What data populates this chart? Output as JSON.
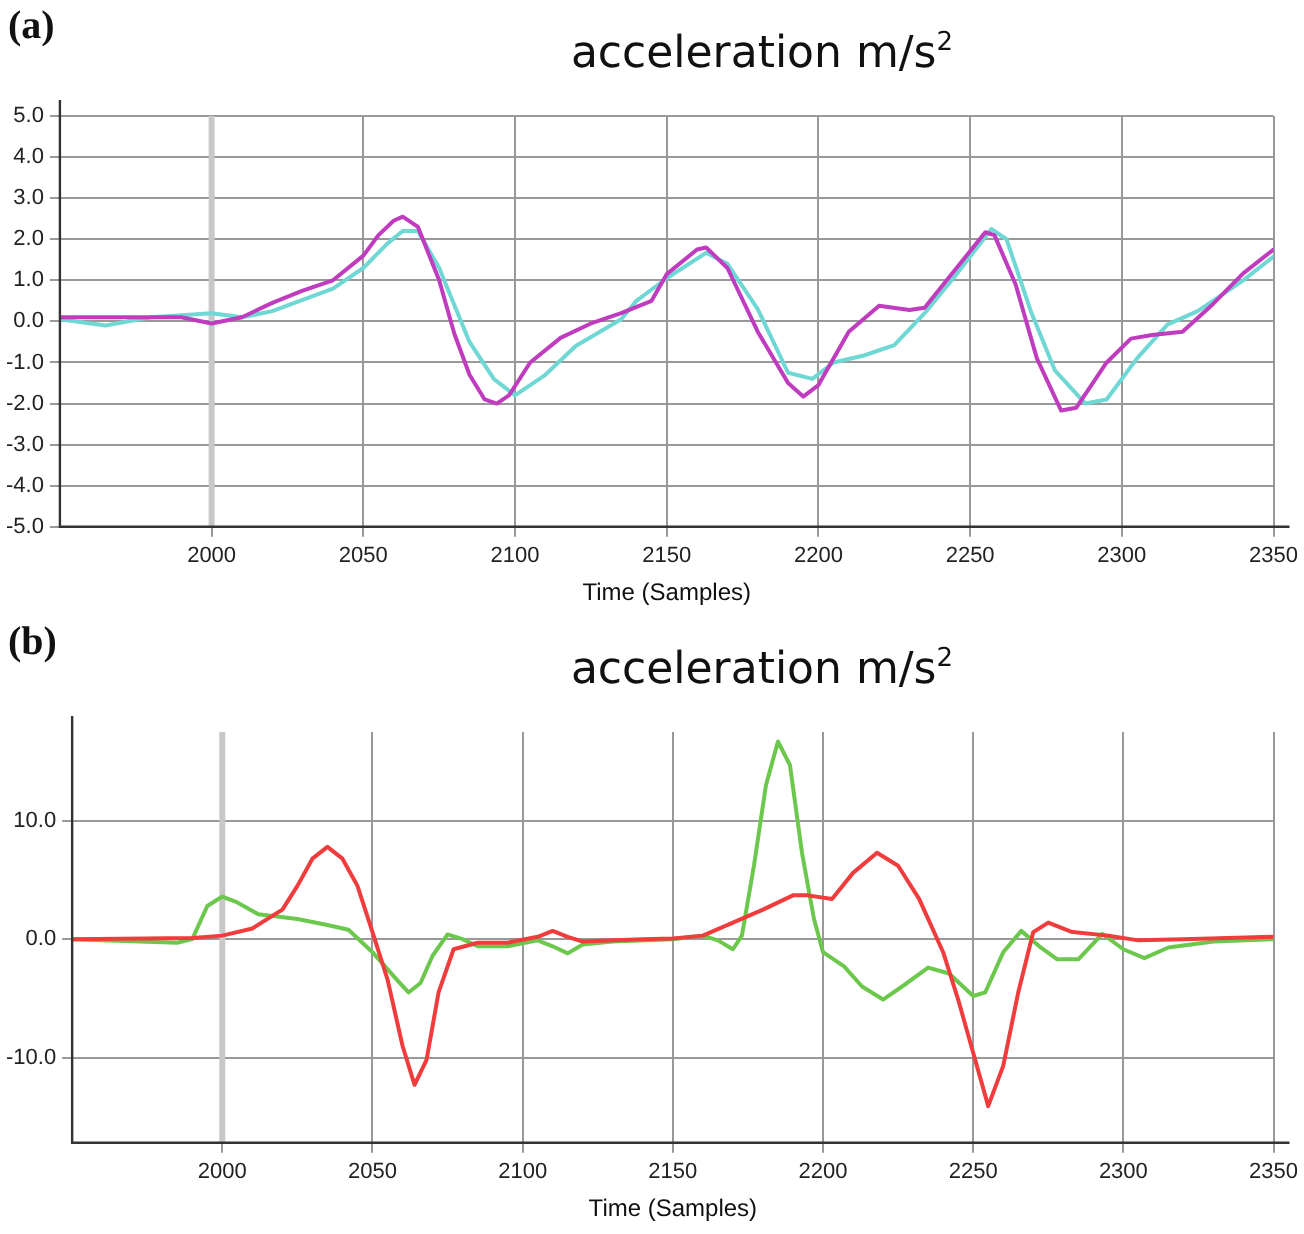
{
  "chart_data": [
    {
      "type": "line",
      "title": "acceleration m/s$^{2}$",
      "xlabel": "Time (Samples)",
      "annotations": [
        "(a)"
      ],
      "xlim": [
        1950,
        2350
      ],
      "xticks": [
        2000,
        2050,
        2100,
        2150,
        2200,
        2250,
        2300,
        2350
      ],
      "ylim": [
        -5,
        5
      ],
      "yticks": [
        {
          "value": -5,
          "label": "-5.0"
        },
        {
          "value": -4,
          "label": "-4.0"
        },
        {
          "value": -3,
          "label": "-3.0"
        },
        {
          "value": -2,
          "label": "-2.0"
        },
        {
          "value": -1,
          "label": "-1.0"
        },
        {
          "value": 0,
          "label": "0.0"
        },
        {
          "value": 1,
          "label": "1.0"
        },
        {
          "value": 2,
          "label": "2.0"
        },
        {
          "value": 3,
          "label": "3.0"
        },
        {
          "value": 4,
          "label": "4.0"
        },
        {
          "value": 5,
          "label": "5.0"
        }
      ],
      "grid": true,
      "legend": false,
      "marker": "none",
      "line_style": "solid",
      "ref_lines": [
        {
          "axis": "x",
          "value": 2000,
          "color": "#c8c8c8"
        }
      ],
      "series": [
        {
          "color": "#c03cbf",
          "x": [
            1950,
            1975,
            1990,
            2000,
            2010,
            2020,
            2030,
            2040,
            2050,
            2055,
            2060,
            2063,
            2068,
            2075,
            2080,
            2085,
            2090,
            2094,
            2098,
            2105,
            2115,
            2125,
            2135,
            2145,
            2150,
            2160,
            2163,
            2170,
            2180,
            2190,
            2195,
            2200,
            2210,
            2220,
            2230,
            2235,
            2245,
            2255,
            2258,
            2265,
            2272,
            2280,
            2285,
            2295,
            2303,
            2310,
            2320,
            2330,
            2340,
            2350
          ],
          "values": [
            0.1,
            0.1,
            0.1,
            -0.05,
            0.1,
            0.45,
            0.75,
            1.0,
            1.6,
            2.1,
            2.45,
            2.55,
            2.3,
            1.0,
            -0.3,
            -1.3,
            -1.9,
            -2.0,
            -1.8,
            -1.0,
            -0.4,
            -0.05,
            0.2,
            0.5,
            1.15,
            1.75,
            1.8,
            1.3,
            -0.25,
            -1.5,
            -1.83,
            -1.55,
            -0.25,
            0.38,
            0.28,
            0.33,
            1.25,
            2.17,
            2.1,
            0.9,
            -0.9,
            -2.17,
            -2.1,
            -1.0,
            -0.42,
            -0.33,
            -0.25,
            0.42,
            1.17,
            1.75
          ]
        },
        {
          "color": "#6fd8d4",
          "x": [
            1950,
            1965,
            1980,
            2000,
            2010,
            2020,
            2040,
            2050,
            2058,
            2063,
            2068,
            2075,
            2085,
            2093,
            2100,
            2110,
            2120,
            2135,
            2140,
            2150,
            2163,
            2170,
            2180,
            2190,
            2198,
            2205,
            2215,
            2225,
            2235,
            2245,
            2257,
            2262,
            2270,
            2278,
            2288,
            2295,
            2305,
            2315,
            2325,
            2340,
            2350
          ],
          "values": [
            0.05,
            -0.1,
            0.1,
            0.2,
            0.1,
            0.25,
            0.8,
            1.3,
            1.9,
            2.2,
            2.2,
            1.3,
            -0.5,
            -1.4,
            -1.8,
            -1.3,
            -0.6,
            0.05,
            0.5,
            1.05,
            1.67,
            1.4,
            0.3,
            -1.25,
            -1.4,
            -1.0,
            -0.83,
            -0.58,
            0.2,
            1.1,
            2.25,
            2.0,
            0.25,
            -1.2,
            -2.0,
            -1.9,
            -0.9,
            -0.08,
            0.25,
            1.0,
            1.58
          ]
        }
      ]
    },
    {
      "type": "line",
      "title": "acceleration m/s$^{2}$",
      "xlabel": "Time (Samples)",
      "annotations": [
        "(b)"
      ],
      "xlim": [
        1950,
        2350
      ],
      "xticks": [
        2000,
        2050,
        2100,
        2150,
        2200,
        2250,
        2300,
        2350
      ],
      "ylim": [
        -17.2,
        17.5
      ],
      "yticks": [
        {
          "value": -10,
          "label": "-10.0"
        },
        {
          "value": 0,
          "label": "0.0"
        },
        {
          "value": 10,
          "label": "10.0"
        }
      ],
      "grid": true,
      "legend": false,
      "marker": "none",
      "line_style": "solid",
      "ref_lines": [
        {
          "axis": "x",
          "value": 2000,
          "color": "#c8c8c8"
        }
      ],
      "series": [
        {
          "color": "#f03c3c",
          "x": [
            1950,
            1990,
            2000,
            2010,
            2020,
            2025,
            2030,
            2035,
            2040,
            2045,
            2050,
            2055,
            2060,
            2064,
            2068,
            2072,
            2077,
            2085,
            2095,
            2105,
            2110,
            2115,
            2120,
            2140,
            2150,
            2160,
            2170,
            2180,
            2190,
            2195,
            2203,
            2210,
            2218,
            2225,
            2232,
            2240,
            2245,
            2250,
            2255,
            2260,
            2265,
            2270,
            2275,
            2283,
            2295,
            2305,
            2320,
            2350
          ],
          "values": [
            0,
            0.1,
            0.3,
            0.9,
            2.5,
            4.5,
            6.8,
            7.8,
            6.8,
            4.5,
            0.6,
            -3.4,
            -9.0,
            -12.3,
            -10.2,
            -4.5,
            -0.85,
            -0.3,
            -0.3,
            0.2,
            0.7,
            0.2,
            -0.2,
            0,
            0.05,
            0.3,
            1.4,
            2.5,
            3.7,
            3.7,
            3.4,
            5.6,
            7.3,
            6.2,
            3.4,
            -1.1,
            -5.1,
            -9.6,
            -14.1,
            -10.7,
            -4.5,
            0.6,
            1.4,
            0.6,
            0.3,
            -0.1,
            0,
            0.2
          ]
        },
        {
          "color": "#6cc84c",
          "x": [
            1950,
            1985,
            1990,
            1995,
            2000,
            2005,
            2012,
            2025,
            2035,
            2042,
            2050,
            2058,
            2062,
            2066,
            2070,
            2075,
            2080,
            2085,
            2095,
            2105,
            2110,
            2115,
            2120,
            2130,
            2150,
            2160,
            2165,
            2170,
            2173,
            2177,
            2181,
            2185,
            2189,
            2193,
            2197,
            2200,
            2207,
            2213,
            2220,
            2228,
            2235,
            2242,
            2250,
            2254,
            2260,
            2266,
            2272,
            2278,
            2285,
            2293,
            2300,
            2307,
            2315,
            2330,
            2350
          ],
          "values": [
            0,
            -0.3,
            0,
            2.8,
            3.6,
            3.1,
            2.1,
            1.7,
            1.2,
            0.8,
            -1.1,
            -3.4,
            -4.5,
            -3.7,
            -1.4,
            0.4,
            0,
            -0.6,
            -0.6,
            -0.1,
            -0.6,
            -1.2,
            -0.45,
            -0.2,
            0,
            0.3,
            -0.1,
            -0.85,
            0.3,
            6.2,
            13.0,
            16.7,
            14.7,
            7.3,
            1.7,
            -1.1,
            -2.3,
            -4.0,
            -5.1,
            -3.7,
            -2.4,
            -2.9,
            -4.8,
            -4.5,
            -1.1,
            0.7,
            -0.6,
            -1.7,
            -1.7,
            0.45,
            -0.85,
            -1.6,
            -0.7,
            -0.2,
            0
          ]
        }
      ]
    }
  ]
}
